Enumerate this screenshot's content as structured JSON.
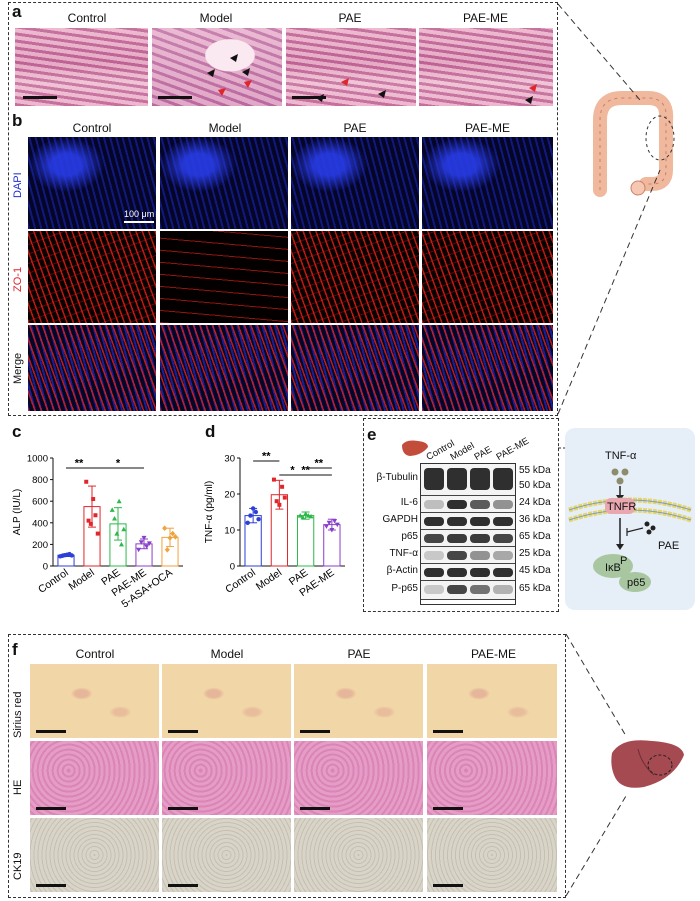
{
  "panels": {
    "a": {
      "label": "a",
      "columns": [
        "Control",
        "Model",
        "PAE",
        "PAE-ME"
      ]
    },
    "b": {
      "label": "b",
      "columns": [
        "Control",
        "Model",
        "PAE",
        "PAE-ME"
      ],
      "rows": [
        "DAPI",
        "ZO-1",
        "Merge"
      ],
      "scale": "100 μm"
    },
    "c": {
      "label": "c"
    },
    "d": {
      "label": "d"
    },
    "e": {
      "label": "e",
      "lanes": [
        "Control",
        "Model",
        "PAE",
        "PAE-ME"
      ],
      "blots": [
        {
          "name": "β-Tubulin",
          "kda": "55 kDa",
          "kda2": "50 kDa"
        },
        {
          "name": "IL-6",
          "kda": "24 kDa"
        },
        {
          "name": "GAPDH",
          "kda": "36 kDa"
        },
        {
          "name": "p65",
          "kda": "65 kDa"
        },
        {
          "name": "TNF-α",
          "kda": "25 kDa"
        },
        {
          "name": "β-Actin",
          "kda": "45 kDa"
        },
        {
          "name": "P-p65",
          "kda": "65 kDa"
        }
      ]
    },
    "pathway": {
      "ligand": "TNF-α",
      "receptor": "TNFR",
      "drug": "PAE",
      "complex_top": "IκB",
      "phospho": "P",
      "complex_bottom": "p65"
    },
    "f": {
      "label": "f",
      "columns": [
        "Control",
        "Model",
        "PAE",
        "PAE-ME"
      ],
      "rows": [
        "Sirius red",
        "HE",
        "CK19"
      ]
    }
  },
  "chart_data": [
    {
      "type": "bar",
      "panel": "c",
      "categories": [
        "Control",
        "Model",
        "PAE",
        "PAE-ME",
        "5-ASA+OCA"
      ],
      "values": [
        100,
        550,
        390,
        205,
        265
      ],
      "errors": [
        12,
        190,
        150,
        45,
        85
      ],
      "colors": [
        "#2d3fd6",
        "#e0262b",
        "#2db84a",
        "#8a3fc9",
        "#f0a23e"
      ],
      "points": [
        [
          90,
          95,
          100,
          105,
          110,
          98
        ],
        [
          780,
          420,
          390,
          620,
          470,
          300
        ],
        [
          520,
          440,
          300,
          600,
          200,
          340
        ],
        [
          150,
          220,
          260,
          180,
          210
        ],
        [
          350,
          150,
          260,
          300,
          270
        ]
      ],
      "ylabel": "ALP (IU/L)",
      "ylim": [
        0,
        1000
      ],
      "yticks": [
        0,
        200,
        400,
        600,
        800,
        1000
      ],
      "significance": [
        {
          "from": 0,
          "to": 1,
          "label": "**"
        },
        {
          "from": 1,
          "to": 3,
          "label": "*"
        }
      ]
    },
    {
      "type": "bar",
      "panel": "d",
      "categories": [
        "Control",
        "Model",
        "PAE",
        "PAE-ME"
      ],
      "values": [
        14,
        19.8,
        14,
        11.5
      ],
      "errors": [
        2,
        4,
        1,
        1.5
      ],
      "colors": [
        "#2d3fd6",
        "#e0262b",
        "#2db84a",
        "#8a3fc9"
      ],
      "points": [
        [
          12,
          14,
          16,
          15,
          13
        ],
        [
          24,
          18,
          17,
          22,
          19
        ],
        [
          14,
          13.5,
          14.5,
          14,
          13.8
        ],
        [
          11,
          12,
          10,
          12.5,
          11.5
        ]
      ],
      "ylabel": "TNF-α (pg/ml)",
      "ylim": [
        0,
        30
      ],
      "yticks": [
        0,
        10,
        20,
        30
      ],
      "significance": [
        {
          "from": 0,
          "to": 1,
          "label": "**"
        },
        {
          "from": 1,
          "to": 3,
          "label": "**"
        },
        {
          "from": 1,
          "to": 2,
          "label": "*"
        },
        {
          "from": 2,
          "to": 3,
          "label": "**"
        }
      ]
    }
  ]
}
